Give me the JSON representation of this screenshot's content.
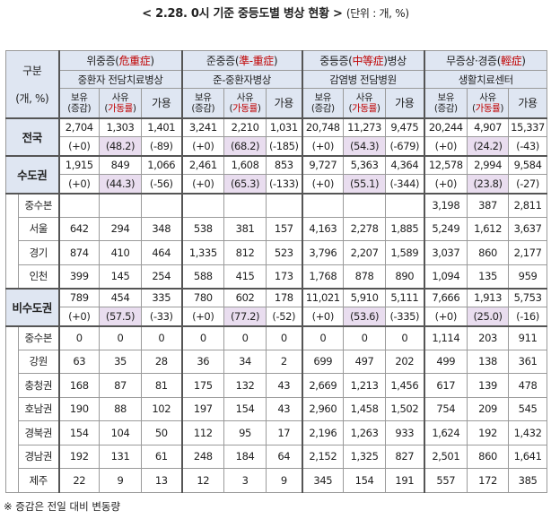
{
  "title": {
    "main": "< 2.28. 0시 기준 중등도별 병상 현황 >",
    "unit": "(단위 : 개, %)"
  },
  "header": {
    "row_label": "구분",
    "row_label_unit": "(개, %)",
    "categories": [
      {
        "sev_a": "위중증(",
        "sev_hl": "危重症",
        "sev_b": ")",
        "facility": "중환자 전담치료병상"
      },
      {
        "sev_a": "준중증(",
        "sev_hl": "準-重症",
        "sev_b": ")",
        "facility": "준-중환자병상"
      },
      {
        "sev_a": "중등증(",
        "sev_hl": "中等症",
        "sev_b": ")병상",
        "facility": "감염병 전담병원"
      },
      {
        "sev_a": "무증상·경증(",
        "sev_hl": "輕症",
        "sev_b": ")",
        "facility": "생활치료센터"
      }
    ],
    "have_a": "보유",
    "have_b": "(증감)",
    "use_a": "사유",
    "use_b_pre": "(",
    "use_b_hl": "가동률",
    "use_b_post": ")",
    "avail": "가용"
  },
  "groups": [
    {
      "label": "전국",
      "values": [
        "2,704",
        "1,303",
        "1,401",
        "3,241",
        "2,210",
        "1,031",
        "20,748",
        "11,273",
        "9,475",
        "20,244",
        "4,907",
        "15,337"
      ],
      "changes": [
        "(+0)",
        "(48.2)",
        "(-89)",
        "(+0)",
        "(68.2)",
        "(-185)",
        "(+0)",
        "(54.3)",
        "(-679)",
        "(+0)",
        "(24.2)",
        "(-43)"
      ]
    },
    {
      "label": "수도권",
      "values": [
        "1,915",
        "849",
        "1,066",
        "2,461",
        "1,608",
        "853",
        "9,727",
        "5,363",
        "4,364",
        "12,578",
        "2,994",
        "9,584"
      ],
      "changes": [
        "(+0)",
        "(44.3)",
        "(-56)",
        "(+0)",
        "(65.3)",
        "(-133)",
        "(+0)",
        "(55.1)",
        "(-344)",
        "(+0)",
        "(23.8)",
        "(-27)"
      ],
      "subrows": [
        {
          "label": "중수본",
          "values": [
            "",
            "",
            "",
            "",
            "",
            "",
            "",
            "",
            "",
            "3,198",
            "387",
            "2,811"
          ]
        },
        {
          "label": "서울",
          "values": [
            "642",
            "294",
            "348",
            "538",
            "381",
            "157",
            "4,163",
            "2,278",
            "1,885",
            "5,249",
            "1,612",
            "3,637"
          ]
        },
        {
          "label": "경기",
          "values": [
            "874",
            "410",
            "464",
            "1,335",
            "812",
            "523",
            "3,796",
            "2,207",
            "1,589",
            "3,037",
            "860",
            "2,177"
          ]
        },
        {
          "label": "인천",
          "values": [
            "399",
            "145",
            "254",
            "588",
            "415",
            "173",
            "1,768",
            "878",
            "890",
            "1,094",
            "135",
            "959"
          ]
        }
      ]
    },
    {
      "label": "비수도권",
      "values": [
        "789",
        "454",
        "335",
        "780",
        "602",
        "178",
        "11,021",
        "5,910",
        "5,111",
        "7,666",
        "1,913",
        "5,753"
      ],
      "changes": [
        "(+0)",
        "(57.5)",
        "(-33)",
        "(+0)",
        "(77.2)",
        "(-52)",
        "(+0)",
        "(53.6)",
        "(-335)",
        "(+0)",
        "(25.0)",
        "(-16)"
      ],
      "subrows": [
        {
          "label": "중수본",
          "values": [
            "0",
            "0",
            "0",
            "0",
            "0",
            "0",
            "0",
            "0",
            "0",
            "1,114",
            "203",
            "911"
          ]
        },
        {
          "label": "강원",
          "values": [
            "63",
            "35",
            "28",
            "36",
            "34",
            "2",
            "699",
            "497",
            "202",
            "499",
            "138",
            "361"
          ]
        },
        {
          "label": "충청권",
          "values": [
            "168",
            "87",
            "81",
            "175",
            "132",
            "43",
            "2,669",
            "1,213",
            "1,456",
            "617",
            "139",
            "478"
          ]
        },
        {
          "label": "호남권",
          "values": [
            "190",
            "88",
            "102",
            "197",
            "154",
            "43",
            "2,960",
            "1,458",
            "1,502",
            "754",
            "209",
            "545"
          ]
        },
        {
          "label": "경북권",
          "values": [
            "154",
            "104",
            "50",
            "112",
            "95",
            "17",
            "2,196",
            "1,263",
            "933",
            "1,624",
            "192",
            "1,432"
          ]
        },
        {
          "label": "경남권",
          "values": [
            "192",
            "131",
            "61",
            "248",
            "184",
            "64",
            "2,152",
            "1,325",
            "827",
            "2,501",
            "860",
            "1,641"
          ]
        },
        {
          "label": "제주",
          "values": [
            "22",
            "9",
            "13",
            "12",
            "3",
            "9",
            "345",
            "154",
            "191",
            "557",
            "172",
            "385"
          ]
        }
      ]
    }
  ],
  "footnote": "※ 증감은 전일 대비 변동량"
}
